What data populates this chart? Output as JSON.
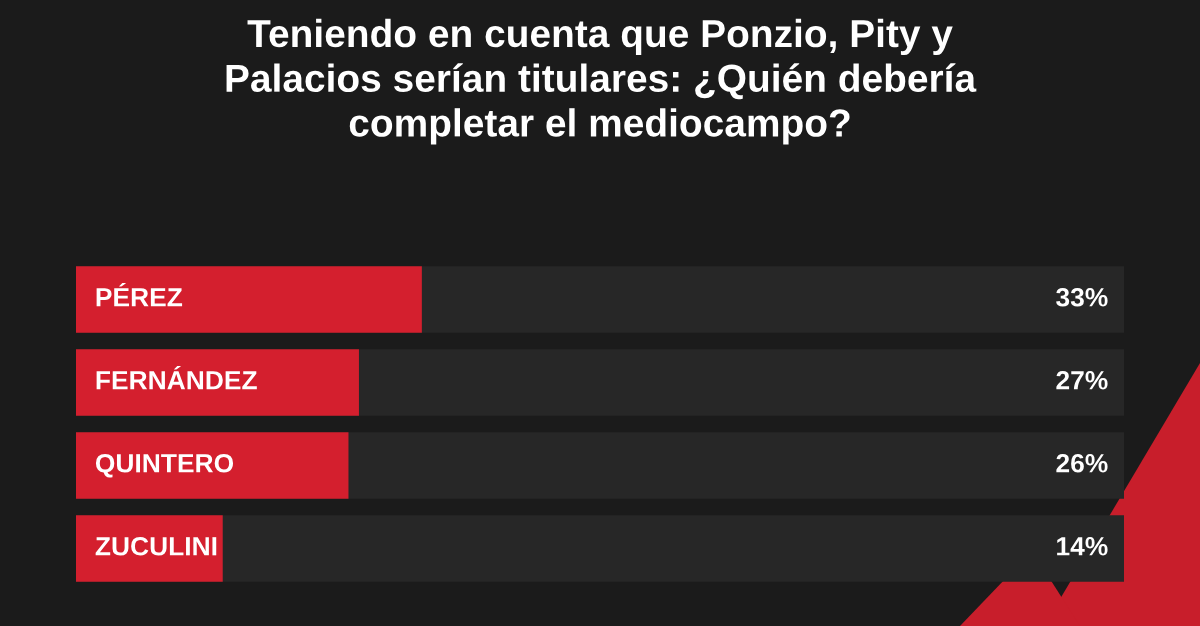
{
  "chart_data": {
    "type": "bar",
    "orientation": "horizontal",
    "title": "Teniendo en cuenta que Ponzio, Pity y\nPalacios serían titulares: ¿Quién debería\ncompletar el mediocampo?",
    "categories": [
      "PÉREZ",
      "FERNÁNDEZ",
      "QUINTERO",
      "ZUCULINI"
    ],
    "values": [
      33,
      27,
      26,
      14
    ],
    "value_labels": [
      "33%",
      "27%",
      "26%",
      "14%"
    ],
    "color": "#d41f2e",
    "xlim": [
      0,
      100
    ]
  }
}
